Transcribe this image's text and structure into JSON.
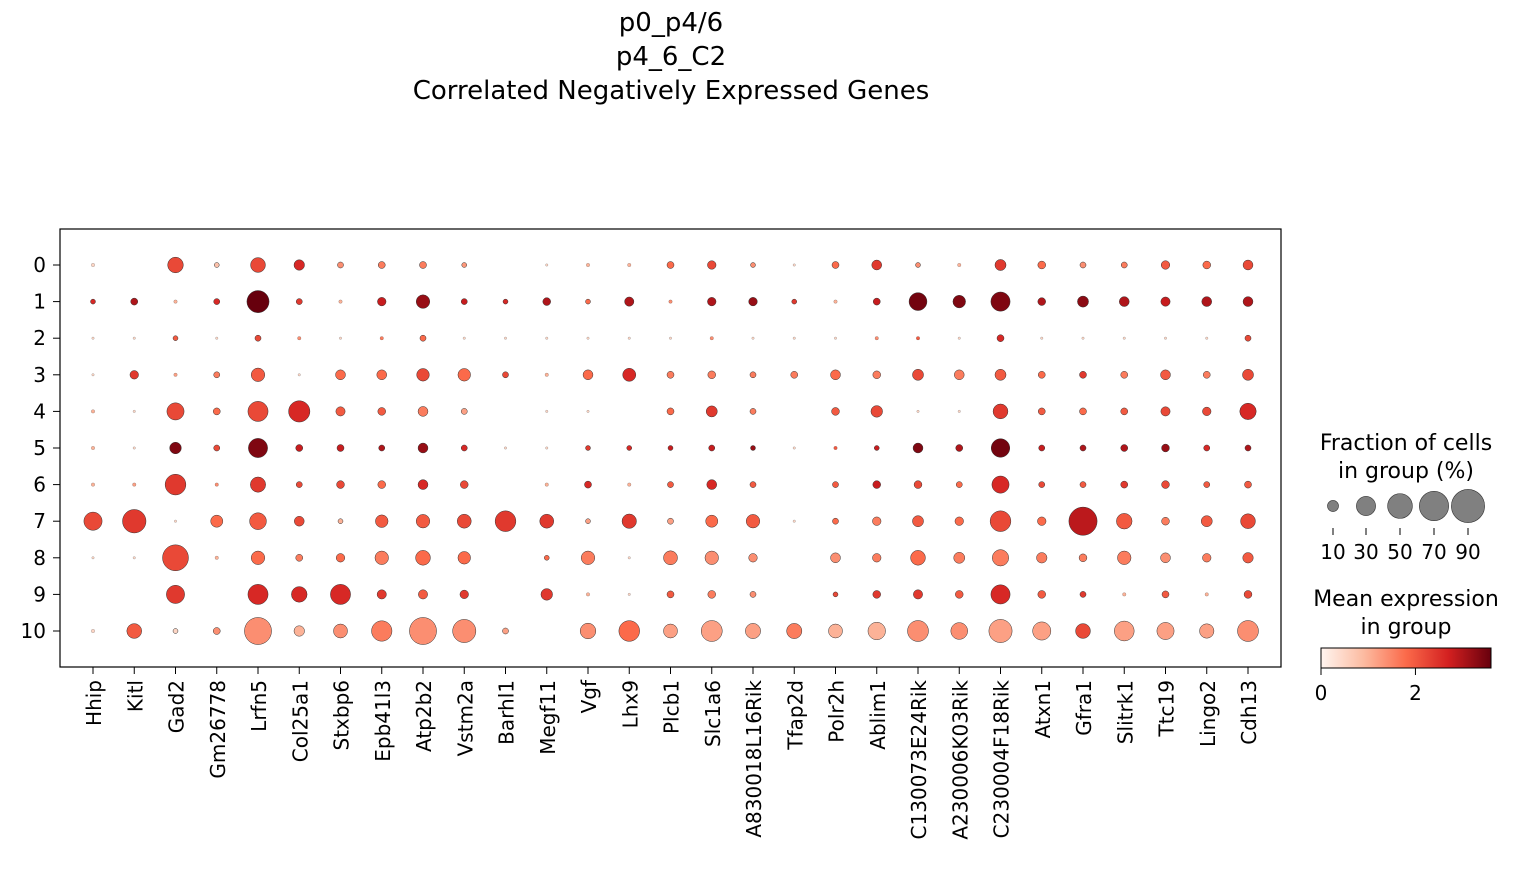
{
  "title_lines": [
    "p0_p4/6",
    "p4_6_C2",
    "Correlated Negatively Expressed Genes"
  ],
  "chart_data": {
    "type": "dotplot",
    "title": "p0_p4/6\np4_6_C2\nCorrelated Negatively Expressed Genes",
    "genes": [
      "Hhip",
      "Kitl",
      "Gad2",
      "Gm26778",
      "Lrfn5",
      "Col25a1",
      "Stxbp6",
      "Epb41l3",
      "Atp2b2",
      "Vstm2a",
      "Barhl1",
      "Megf11",
      "Vgf",
      "Lhx9",
      "Plcb1",
      "Slc1a6",
      "A830018L16Rik",
      "Tfap2d",
      "Polr2h",
      "Ablim1",
      "C130073E24Rik",
      "A230006K03Rik",
      "C230004F18Rik",
      "Atxn1",
      "Gfra1",
      "Slitrk1",
      "Ttc19",
      "Lingo2",
      "Cdh13"
    ],
    "groups": [
      "0",
      "1",
      "2",
      "3",
      "4",
      "5",
      "6",
      "7",
      "8",
      "9",
      "10"
    ],
    "fraction_pct": [
      [
        1,
        0,
        20,
        2,
        18,
        9,
        3,
        4,
        4,
        2,
        0,
        0.5,
        1,
        1,
        4,
        6,
        2,
        0.5,
        4,
        8,
        2,
        1,
        10,
        5,
        3,
        3,
        6,
        5,
        8
      ],
      [
        2,
        4,
        1,
        3,
        40,
        3,
        1,
        6,
        15,
        3,
        2,
        5,
        2,
        7,
        1,
        6,
        6,
        2,
        1,
        4,
        26,
        13,
        30,
        5,
        10,
        8,
        7,
        8,
        8
      ],
      [
        0.5,
        0.5,
        2,
        0.5,
        3,
        1,
        0.5,
        1,
        3,
        0.5,
        0.5,
        0.5,
        0.5,
        0.5,
        0.5,
        1,
        0.5,
        0.5,
        0.5,
        1,
        1,
        0.5,
        4,
        0.5,
        0.5,
        0.5,
        0.5,
        0.5,
        3
      ],
      [
        0.5,
        6,
        1,
        3,
        15,
        0.5,
        8,
        8,
        13,
        13,
        3,
        1,
        8,
        14,
        4,
        5,
        3,
        4,
        8,
        5,
        10,
        8,
        10,
        4,
        4,
        4,
        8,
        4,
        10
      ],
      [
        1,
        0.5,
        24,
        4,
        33,
        37,
        7,
        5,
        8,
        3,
        0,
        0.5,
        0.5,
        0,
        4,
        10,
        3,
        0,
        5,
        11,
        0.5,
        0.5,
        18,
        4,
        4,
        4,
        7,
        6,
        22
      ],
      [
        1,
        0.5,
        11,
        3,
        30,
        4,
        4,
        3,
        8,
        3,
        0.5,
        0.5,
        2,
        2,
        2,
        3,
        2,
        0.5,
        1,
        2,
        8,
        4,
        28,
        3,
        3,
        4,
        5,
        3,
        3
      ],
      [
        1,
        1,
        35,
        1,
        19,
        3,
        5,
        5,
        8,
        5,
        0,
        1,
        4,
        1,
        3,
        8,
        3,
        0,
        3,
        5,
        5,
        3,
        24,
        3,
        3,
        4,
        5,
        3,
        4
      ],
      [
        27,
        45,
        0.5,
        12,
        23,
        8,
        2,
        13,
        15,
        16,
        35,
        16,
        2,
        17,
        3,
        12,
        15,
        0.5,
        3,
        6,
        10,
        6,
        35,
        6,
        65,
        20,
        5,
        10,
        18
      ],
      [
        0.5,
        0.5,
        55,
        1,
        15,
        4,
        6,
        15,
        18,
        13,
        0,
        2,
        15,
        0.5,
        16,
        15,
        6,
        0,
        8,
        6,
        18,
        10,
        22,
        9,
        5,
        15,
        8,
        6,
        9
      ],
      [
        0,
        0,
        27,
        0,
        33,
        20,
        33,
        7,
        7,
        6,
        0,
        11,
        1,
        0.5,
        4,
        5,
        3,
        0,
        2,
        5,
        7,
        5,
        30,
        5,
        3,
        1,
        4,
        1,
        5
      ],
      [
        1,
        18,
        2,
        4,
        60,
        9,
        16,
        34,
        60,
        44,
        3,
        0,
        20,
        35,
        16,
        36,
        19,
        19,
        16,
        25,
        36,
        23,
        44,
        27,
        18,
        32,
        24,
        17,
        36
      ]
    ],
    "mean_expression": [
      [
        0.5,
        0,
        2.2,
        0.8,
        2.2,
        2.6,
        1.4,
        1.6,
        1.6,
        1.3,
        0,
        0.5,
        1.0,
        1.0,
        1.8,
        2.2,
        1.4,
        0.5,
        1.8,
        2.4,
        1.4,
        1.0,
        2.4,
        1.8,
        1.4,
        1.6,
        2.0,
        1.8,
        2.2
      ],
      [
        2.6,
        3.0,
        1.0,
        2.6,
        3.6,
        2.4,
        1.0,
        2.8,
        3.2,
        2.8,
        2.6,
        3.0,
        1.8,
        3.0,
        1.4,
        3.0,
        3.2,
        2.4,
        1.0,
        2.8,
        3.5,
        3.4,
        3.4,
        3.0,
        3.3,
        3.0,
        2.8,
        3.0,
        3.0
      ],
      [
        0.5,
        0.5,
        2.0,
        0.5,
        2.2,
        1.4,
        0.5,
        1.6,
        1.8,
        0.5,
        0.5,
        0.5,
        0.5,
        0.5,
        0.5,
        1.4,
        0.5,
        0.5,
        0.5,
        1.4,
        2.0,
        0.5,
        2.6,
        0.5,
        0.5,
        0.5,
        0.5,
        0.5,
        2.2
      ],
      [
        0.5,
        2.4,
        1.2,
        1.6,
        2.0,
        0.5,
        1.8,
        1.8,
        2.2,
        1.8,
        2.2,
        1.0,
        1.8,
        2.6,
        1.6,
        1.6,
        1.6,
        1.6,
        1.8,
        1.6,
        2.2,
        1.6,
        2.0,
        1.8,
        2.4,
        1.6,
        2.0,
        1.6,
        2.2
      ],
      [
        1.0,
        0.5,
        2.2,
        1.8,
        2.2,
        2.6,
        2.0,
        2.0,
        1.6,
        1.2,
        0,
        0.5,
        0.5,
        0,
        1.8,
        2.4,
        1.6,
        0,
        2.0,
        2.2,
        0.5,
        0.5,
        2.4,
        2.0,
        1.8,
        2.0,
        2.2,
        2.2,
        2.6
      ],
      [
        1.0,
        0.5,
        3.4,
        2.2,
        3.4,
        2.8,
        2.8,
        3.0,
        3.2,
        2.6,
        0.5,
        0.5,
        2.4,
        2.6,
        2.8,
        2.8,
        3.2,
        0.5,
        2.0,
        2.8,
        3.4,
        3.0,
        3.5,
        2.8,
        3.0,
        3.0,
        3.2,
        2.6,
        3.0
      ],
      [
        1.0,
        1.2,
        2.4,
        1.4,
        2.4,
        2.2,
        2.2,
        1.8,
        2.6,
        2.2,
        0,
        1.0,
        2.6,
        1.0,
        2.0,
        2.6,
        2.0,
        0,
        2.0,
        2.8,
        2.2,
        1.8,
        2.6,
        2.2,
        2.0,
        2.4,
        2.2,
        2.0,
        2.0
      ],
      [
        2.2,
        2.4,
        0.5,
        1.8,
        2.0,
        2.2,
        1.0,
        2.0,
        2.0,
        2.2,
        2.4,
        2.4,
        1.2,
        2.4,
        1.2,
        1.8,
        2.0,
        0.5,
        1.8,
        1.6,
        2.0,
        1.8,
        2.2,
        1.8,
        2.9,
        2.0,
        1.6,
        2.0,
        2.2
      ],
      [
        0.5,
        0.5,
        2.2,
        1.0,
        1.8,
        1.6,
        1.8,
        1.6,
        1.8,
        1.8,
        0,
        1.8,
        1.6,
        0.5,
        1.6,
        1.4,
        1.4,
        0,
        1.4,
        1.6,
        1.8,
        1.6,
        1.6,
        1.6,
        1.6,
        1.6,
        1.4,
        1.6,
        2.0
      ],
      [
        0,
        0,
        2.4,
        0,
        2.6,
        2.6,
        2.6,
        2.4,
        2.0,
        2.4,
        0,
        2.4,
        1.0,
        0.5,
        2.0,
        1.6,
        1.4,
        0,
        2.2,
        2.4,
        2.4,
        2.0,
        2.6,
        2.0,
        2.4,
        1.0,
        2.0,
        1.0,
        2.2
      ],
      [
        0.5,
        2.0,
        0.5,
        1.4,
        1.4,
        1.0,
        1.4,
        1.6,
        1.4,
        1.4,
        1.2,
        0,
        1.4,
        1.8,
        1.2,
        1.2,
        1.2,
        1.6,
        1.0,
        1.0,
        1.4,
        1.4,
        1.2,
        1.2,
        2.2,
        1.2,
        1.2,
        1.2,
        1.4
      ]
    ],
    "size_legend": {
      "title": "Fraction of cells\nin group (%)",
      "values": [
        10,
        30,
        50,
        70,
        90
      ],
      "labels": [
        "10",
        "30",
        "50",
        "70",
        "90"
      ]
    },
    "color_legend": {
      "title": "Mean expression\nin group",
      "range": [
        0,
        3.6
      ],
      "ticks": [
        0,
        2
      ],
      "tick_labels": [
        "0",
        "2"
      ],
      "colormap": "Reds"
    }
  }
}
